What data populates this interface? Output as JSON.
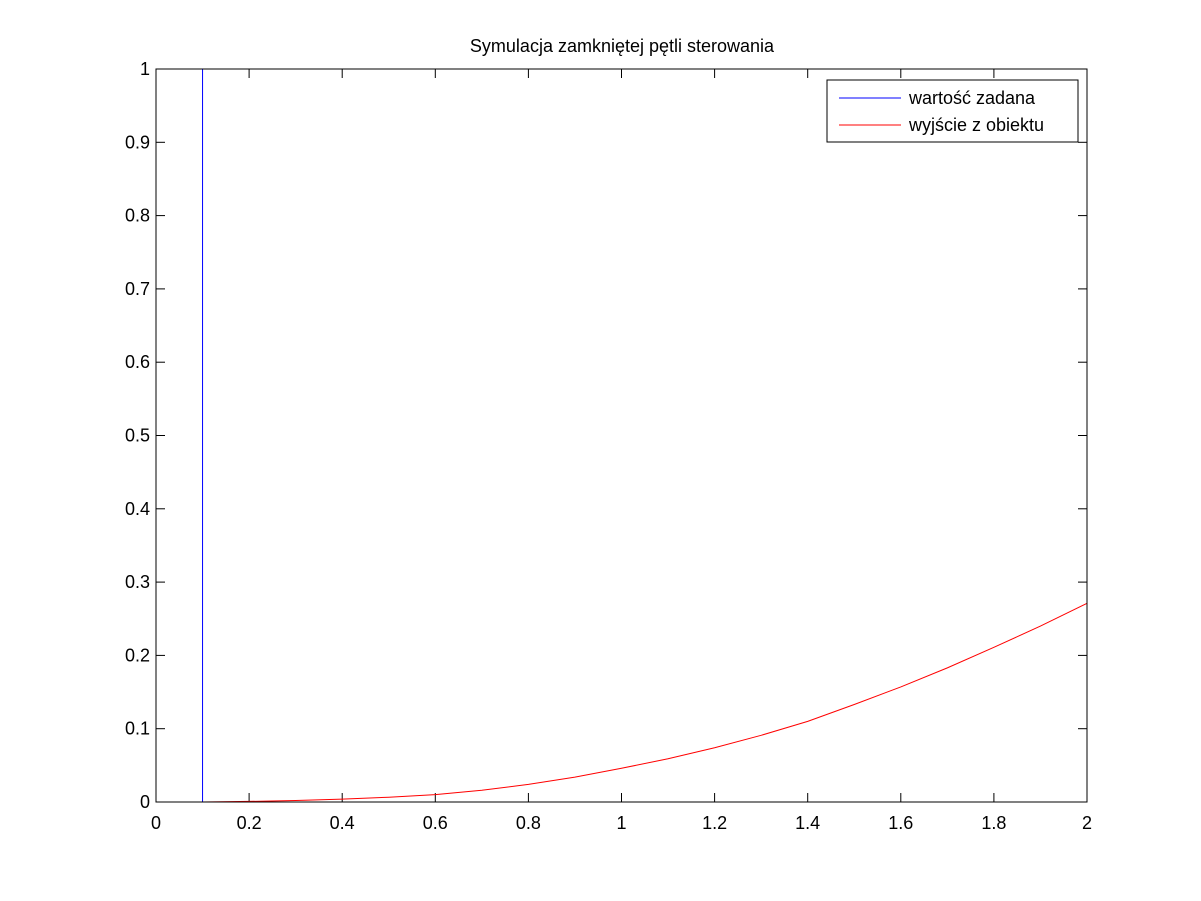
{
  "chart_data": {
    "type": "line",
    "title": "Symulacja zamkniętej pętli sterowania",
    "xlabel": "",
    "ylabel": "",
    "xlim": [
      0,
      2
    ],
    "ylim": [
      0,
      1
    ],
    "x_ticks": [
      0,
      0.2,
      0.4,
      0.6,
      0.8,
      1,
      1.2,
      1.4,
      1.6,
      1.8,
      2
    ],
    "x_tick_labels": [
      "0",
      "0.2",
      "0.4",
      "0.6",
      "0.8",
      "1",
      "1.2",
      "1.4",
      "1.6",
      "1.8",
      "2"
    ],
    "y_ticks": [
      0,
      0.1,
      0.2,
      0.3,
      0.4,
      0.5,
      0.6,
      0.7,
      0.8,
      0.9,
      1
    ],
    "y_tick_labels": [
      "0",
      "0.1",
      "0.2",
      "0.3",
      "0.4",
      "0.5",
      "0.6",
      "0.7",
      "0.8",
      "0.9",
      "1"
    ],
    "grid": false,
    "legend_position": "top-right",
    "series": [
      {
        "name": "wartość zadana",
        "color": "#0000ff",
        "x": [
          0,
          0.1,
          0.1,
          0.1
        ],
        "y": [
          0,
          0,
          1,
          0
        ]
      },
      {
        "name": "wyjście z obiektu",
        "color": "#ff0000",
        "x": [
          0,
          0.1,
          0.2,
          0.3,
          0.4,
          0.5,
          0.6,
          0.7,
          0.8,
          0.9,
          1.0,
          1.1,
          1.2,
          1.3,
          1.4,
          1.5,
          1.6,
          1.7,
          1.8,
          1.9,
          2.0
        ],
        "y": [
          0,
          0,
          0.0008,
          0.002,
          0.004,
          0.0065,
          0.01,
          0.016,
          0.024,
          0.034,
          0.046,
          0.059,
          0.074,
          0.091,
          0.11,
          0.133,
          0.157,
          0.183,
          0.211,
          0.24,
          0.271
        ]
      }
    ]
  }
}
